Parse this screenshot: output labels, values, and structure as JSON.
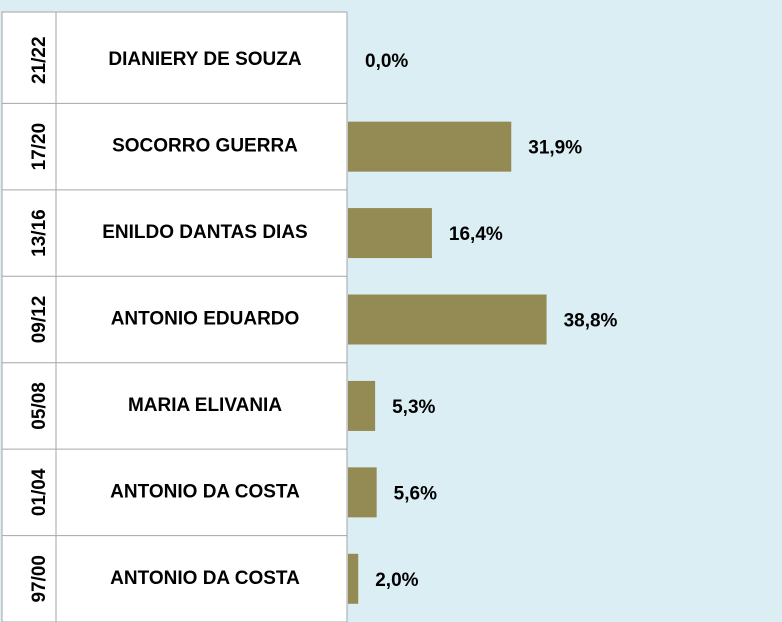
{
  "chart_data": {
    "type": "bar",
    "orientation": "horizontal",
    "periods": [
      "21/22",
      "17/20",
      "13/16",
      "09/12",
      "05/08",
      "01/04",
      "97/00"
    ],
    "categories": [
      "DIANIERY DE SOUZA",
      "SOCORRO GUERRA",
      "ENILDO DANTAS DIAS",
      "ANTONIO EDUARDO",
      "MARIA ELIVANIA",
      "ANTONIO DA COSTA",
      "ANTONIO DA COSTA"
    ],
    "values": [
      0.0,
      31.9,
      16.4,
      38.8,
      5.3,
      5.6,
      2.0
    ],
    "value_labels": [
      "0,0%",
      "31,9%",
      "16,4%",
      "38,8%",
      "5,3%",
      "5,6%",
      "2,0%"
    ],
    "color": "#948a54",
    "xlim": [
      0,
      85
    ]
  }
}
